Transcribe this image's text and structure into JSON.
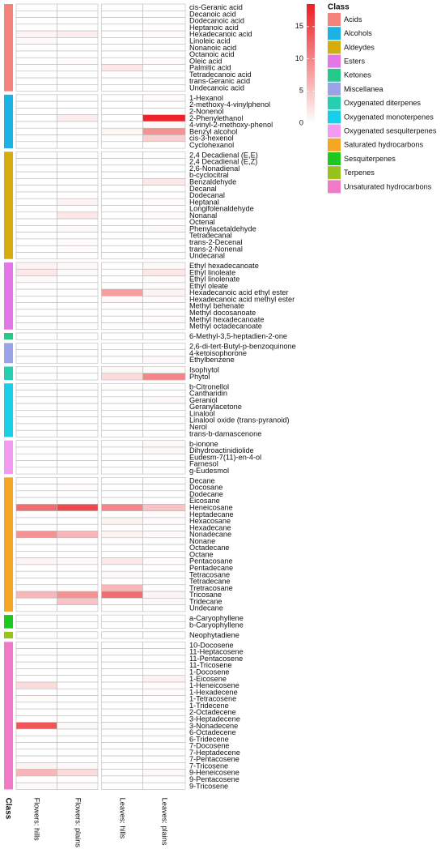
{
  "chart_data": {
    "type": "heatmap",
    "columns": [
      "Flowers: hills",
      "Flowers: plains",
      "Leaves: hills",
      "Leaves: plains"
    ],
    "strip_label": "Class",
    "legend_title": "Class",
    "zlim": [
      0,
      18.5
    ],
    "zticks": [
      0,
      5,
      10,
      15
    ],
    "low_color": "#ffffff",
    "high_color": "#eb1e23",
    "groups": [
      {
        "name": "Acids",
        "color": "#f4837d",
        "rows": [
          "cis-Geranic acid",
          "Decanoic acid",
          "Dodecanoic acid",
          "Heptanoic acid",
          "Hexadecanoic acid",
          "Linoleic acid",
          "Nonanoic acid",
          "Octanoic acid",
          "Oleic acid",
          "Palmitic acid",
          "Tetradecanoic acid",
          "trans-Geranic acid",
          "Undecanoic acid"
        ],
        "values": [
          [
            0,
            0,
            0,
            0
          ],
          [
            0,
            0,
            0,
            0
          ],
          [
            0,
            0,
            0,
            0
          ],
          [
            0,
            0,
            0,
            0
          ],
          [
            1,
            1.5,
            0,
            0.3
          ],
          [
            0.5,
            0,
            0,
            0
          ],
          [
            0,
            0,
            0,
            0
          ],
          [
            0,
            0,
            0,
            0
          ],
          [
            0,
            0.3,
            0,
            0.3
          ],
          [
            0,
            0,
            2,
            0
          ],
          [
            0,
            0,
            0,
            0
          ],
          [
            0,
            0,
            0,
            0
          ],
          [
            0,
            0,
            0,
            0
          ]
        ]
      },
      {
        "name": "Alcohols",
        "color": "#1bb2e6",
        "rows": [
          "1-Hexanol",
          "2-methoxy-4-vinylphenol",
          "2-Nonenol",
          "2-Phenylethanol",
          "4-vinyl-2-methoxy-phenol",
          "Benzyl alcohol",
          "cis-3-hexenol",
          "Cyclohexanol"
        ],
        "values": [
          [
            0,
            0,
            0,
            0.3
          ],
          [
            0,
            0,
            0,
            0
          ],
          [
            0,
            0,
            0,
            0
          ],
          [
            0,
            1.5,
            0,
            18
          ],
          [
            0,
            0,
            0,
            0.5
          ],
          [
            0,
            0,
            0.8,
            9
          ],
          [
            0,
            0,
            0,
            4
          ],
          [
            0,
            0,
            0,
            0
          ]
        ]
      },
      {
        "name": "Aldeydes",
        "color": "#d4ac0d",
        "rows": [
          "2,4  Decadienal  (E,E)",
          "2,4 Decadienal  (E,Z)",
          "2,6-Nonadienal",
          "b-cyclocitral",
          "Benzaldehyde",
          "Decanal",
          "Dodecanal",
          "Heptanal",
          "Longifolenaldehyde",
          "Nonanal",
          "Octenal",
          "Phenylacetaldehyde",
          "Tetradecanal",
          "trans-2-Decenal",
          "trans-2-Nonenal",
          "Undecanal"
        ],
        "values": [
          [
            0,
            0,
            0,
            0
          ],
          [
            0,
            0,
            0,
            0
          ],
          [
            0,
            0,
            0,
            0
          ],
          [
            0,
            0,
            0,
            0
          ],
          [
            0,
            0,
            0,
            2
          ],
          [
            0,
            0,
            0,
            0
          ],
          [
            0,
            0,
            0,
            0
          ],
          [
            0,
            1,
            0,
            0.3
          ],
          [
            0,
            0,
            0,
            0
          ],
          [
            0,
            2,
            0,
            0.3
          ],
          [
            0,
            0,
            0,
            0
          ],
          [
            0,
            0.5,
            0,
            0.5
          ],
          [
            0,
            0,
            0,
            0
          ],
          [
            0,
            0.3,
            0,
            0
          ],
          [
            0,
            0.3,
            0,
            0
          ],
          [
            0,
            0,
            0,
            0
          ]
        ]
      },
      {
        "name": "Esters",
        "color": "#e377e8",
        "rows": [
          "Ethyl hexadecanoate",
          "Ethyl linoleate",
          "Ethyl linolenate",
          "Ethyl oleate",
          "Hexadecanoic acid ethyl ester",
          "Hexadecanoic acid methyl ester",
          "Methyl behenate",
          "Methyl docosanoate",
          "Methyl hexadecanoate",
          "Methyl octadecanoate"
        ],
        "values": [
          [
            1,
            0.5,
            0,
            0.5
          ],
          [
            2,
            0.5,
            0,
            2
          ],
          [
            0.5,
            0,
            0,
            0.3
          ],
          [
            0,
            0,
            0,
            0.3
          ],
          [
            0,
            0,
            8,
            1
          ],
          [
            0,
            0,
            0.5,
            0.3
          ],
          [
            0,
            0,
            0,
            0
          ],
          [
            0,
            0,
            0,
            0
          ],
          [
            0,
            0,
            0,
            0.3
          ],
          [
            0,
            0,
            0,
            0
          ]
        ]
      },
      {
        "name": "Ketones",
        "color": "#26c98a",
        "rows": [
          "6-Methyl-3,5-heptadien-2-one"
        ],
        "values": [
          [
            0,
            0,
            0,
            0
          ]
        ]
      },
      {
        "name": "Miscellanea",
        "color": "#99a3e6",
        "rows": [
          "2,6-di-tert-Butyl-p-benzoquinone",
          "4-ketoisophorone",
          "Ethylbenzene"
        ],
        "values": [
          [
            0,
            0,
            0,
            0
          ],
          [
            0,
            0,
            0,
            0
          ],
          [
            0,
            0,
            0,
            0.5
          ]
        ]
      },
      {
        "name": "Oxygenated diterpenes",
        "color": "#25cfb0",
        "rows": [
          "Isophytol",
          "Phytol"
        ],
        "values": [
          [
            0,
            0,
            0.5,
            0.3
          ],
          [
            0,
            0,
            3,
            10
          ]
        ]
      },
      {
        "name": "Oxygenated monoterpenes",
        "color": "#17d0e8",
        "rows": [
          "b-Citronellol",
          "Cantharidin",
          "Geraniol",
          "Geranylacetone",
          "Linalool",
          "Linalool oxide (trans-pyranoid)",
          "Nerol",
          "trans-b-damascenone"
        ],
        "values": [
          [
            0,
            0,
            0,
            0
          ],
          [
            0,
            0,
            0,
            0
          ],
          [
            0,
            0,
            0,
            0.5
          ],
          [
            0,
            0,
            0,
            0
          ],
          [
            0,
            0,
            0,
            0
          ],
          [
            0,
            0,
            0,
            0
          ],
          [
            0,
            0,
            0,
            0
          ],
          [
            0,
            0,
            0,
            0
          ]
        ]
      },
      {
        "name": "Oxygenated sesquiterpenes",
        "color": "#f29bf0",
        "rows": [
          "b-ionone",
          "Dihydroactinidiolide",
          "Eudesm-7(11)-en-4-ol",
          "Farnesol",
          "g-Eudesmol"
        ],
        "values": [
          [
            0,
            0,
            0,
            0.5
          ],
          [
            0,
            0,
            0,
            0.5
          ],
          [
            0,
            0,
            0,
            0
          ],
          [
            0,
            0,
            0,
            0
          ],
          [
            0,
            0,
            0,
            0
          ]
        ]
      },
      {
        "name": "Saturated hydrocarbons",
        "color": "#f5a623",
        "rows": [
          "Decane",
          "Docosane",
          "Dodecane",
          "Eicosane",
          "Heneicosane",
          "Heptadecane",
          "Hexacosane",
          "Hexadecane",
          "Nonadecane",
          "Nonane",
          "Octadecane",
          "Octane",
          "Pentacosane",
          "Pentadecane",
          "Tetracosane",
          "Tetradecane",
          "Tretracosane",
          "Tricosane",
          "Tridecane",
          "Undecane"
        ],
        "values": [
          [
            0,
            0,
            0,
            0
          ],
          [
            0,
            0.3,
            0,
            0
          ],
          [
            0,
            0,
            0,
            0
          ],
          [
            0,
            0,
            0,
            0
          ],
          [
            12,
            15,
            10,
            5
          ],
          [
            0,
            0,
            0,
            0.3
          ],
          [
            0,
            0,
            1,
            0.3
          ],
          [
            0,
            0,
            0,
            0
          ],
          [
            9,
            6,
            1,
            0.5
          ],
          [
            0,
            0,
            0,
            0
          ],
          [
            0,
            0,
            0,
            0
          ],
          [
            0,
            0,
            0,
            0
          ],
          [
            1,
            0.5,
            2,
            0.3
          ],
          [
            0,
            0,
            0,
            0
          ],
          [
            0,
            0,
            0.5,
            0
          ],
          [
            0,
            0,
            0,
            0
          ],
          [
            0,
            0,
            6,
            0
          ],
          [
            6,
            9,
            12,
            1
          ],
          [
            0,
            5,
            0,
            0.5
          ],
          [
            0,
            0,
            0,
            0
          ]
        ]
      },
      {
        "name": "Sesquiterpenes",
        "color": "#1ec81e",
        "rows": [
          "a-Caryophyllene",
          "b-Caryophyllene"
        ],
        "values": [
          [
            0,
            0,
            0,
            0
          ],
          [
            0,
            0,
            0,
            0
          ]
        ]
      },
      {
        "name": "Terpenes",
        "color": "#9ac21c",
        "rows": [
          "Neophytadiene"
        ],
        "values": [
          [
            0,
            0,
            0,
            0
          ]
        ]
      },
      {
        "name": "Unsaturated hydrocarbons",
        "color": "#f07ac8",
        "rows": [
          "10-Docosene",
          "11-Heptacosene",
          "11-Pentacosene",
          "11-Tricosene",
          "1-Docosene",
          "1-Eicosene",
          "1-Heneicosene",
          "1-Hexadecene",
          "1-Tetracosene",
          "1-Tridecene",
          "2-Octadecene",
          "3-Heptadecene",
          "3-Nonadecene",
          "6-Octadecene",
          "6-Tridecene",
          "7-Docosene",
          "7-Heptadecene",
          "7-Pentacosene",
          "7-Tricosene",
          "9-Heneicosene",
          "9-Pentacosene",
          "9-Tricosene"
        ],
        "values": [
          [
            0,
            0,
            0,
            0
          ],
          [
            0,
            0,
            0,
            0
          ],
          [
            0,
            0,
            0,
            0
          ],
          [
            0,
            0,
            0,
            0
          ],
          [
            0,
            0,
            0,
            0
          ],
          [
            0,
            0,
            0,
            1
          ],
          [
            3,
            0,
            0,
            0.3
          ],
          [
            0,
            0,
            0,
            0.3
          ],
          [
            0.3,
            0,
            0,
            0
          ],
          [
            0,
            0,
            0,
            0
          ],
          [
            0,
            0,
            0,
            0
          ],
          [
            0,
            0,
            0,
            0
          ],
          [
            14,
            0.5,
            0.3,
            0
          ],
          [
            0,
            0,
            0,
            0
          ],
          [
            0,
            0,
            0,
            0
          ],
          [
            0,
            0,
            0,
            0
          ],
          [
            0,
            0,
            0,
            0
          ],
          [
            0,
            0,
            0,
            0
          ],
          [
            1,
            0.5,
            0,
            0
          ],
          [
            6,
            3,
            0,
            0.5
          ],
          [
            0,
            0,
            0,
            0
          ],
          [
            0.5,
            0.5,
            0,
            0
          ]
        ]
      }
    ]
  }
}
